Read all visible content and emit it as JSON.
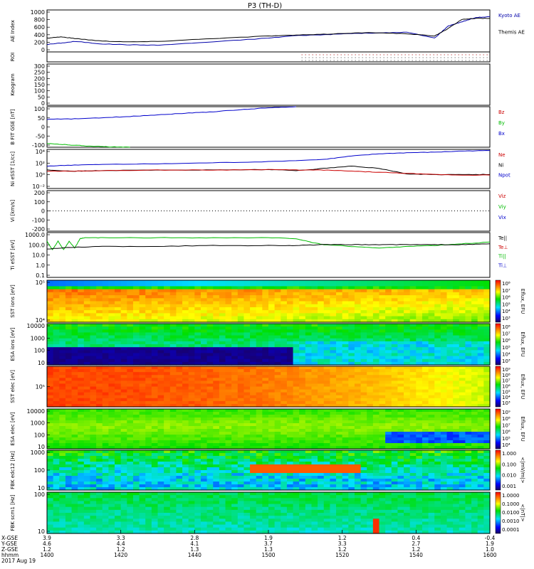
{
  "chart_data": {
    "type": "line",
    "title": "P3 (TH-D)",
    "date_label": "2017 Aug 19",
    "footer_rows": [
      {
        "label": "X-GSE",
        "values": [
          "3.9",
          "3.3",
          "2.8",
          "1.9",
          "1.2",
          "0.4",
          "-0.4"
        ]
      },
      {
        "label": "Y-GSE",
        "values": [
          "4.6",
          "4.4",
          "4.1",
          "3.7",
          "3.3",
          "2.7",
          "1.9"
        ]
      },
      {
        "label": "Z-GSE",
        "values": [
          "1.2",
          "1.2",
          "1.3",
          "1.3",
          "1.2",
          "1.2",
          "1.0"
        ]
      },
      {
        "label": "hhmm",
        "values": [
          "1400",
          "1420",
          "1440",
          "1500",
          "1520",
          "1540",
          "1600"
        ]
      }
    ],
    "panels": [
      {
        "ylabel": "AE Index",
        "ylim": [
          0,
          1000
        ],
        "ticks": [
          "1000",
          "800",
          "600",
          "400",
          "200",
          "0"
        ],
        "legend": [
          {
            "text": "Kyoto AE",
            "color": "#0000aa"
          },
          {
            "text": "Themis AE",
            "color": "#000000"
          }
        ],
        "series": [
          {
            "name": "Kyoto AE",
            "color": "#0000aa",
            "x": [
              0,
              5,
              10,
              20,
              30,
              40,
              60,
              80,
              90,
              100,
              110,
              120,
              130,
              140,
              145,
              150,
              155,
              160
            ],
            "y": [
              180,
              210,
              250,
              190,
              170,
              160,
              240,
              330,
              390,
              410,
              440,
              450,
              470,
              330,
              620,
              720,
              820,
              840
            ]
          },
          {
            "name": "Themis AE",
            "color": "#000000",
            "x": [
              0,
              5,
              10,
              20,
              30,
              40,
              60,
              80,
              90,
              100,
              110,
              120,
              130,
              140,
              145,
              150,
              155,
              160
            ],
            "y": [
              330,
              360,
              320,
              260,
              240,
              250,
              320,
              380,
              400,
              420,
              450,
              460,
              430,
              380,
              560,
              780,
              800,
              800
            ]
          }
        ]
      },
      {
        "ylabel": "ROI",
        "legend": []
      },
      {
        "ylabel": "Keogram",
        "ylim": [
          0,
          300
        ],
        "ticks": [
          "300",
          "250",
          "200",
          "150",
          "100",
          "50",
          "0"
        ],
        "legend": []
      },
      {
        "ylabel": "B FIT GSE [nT]",
        "ylim": [
          -100,
          100
        ],
        "ticks": [
          "100",
          "50",
          "0",
          "-50",
          "-100"
        ],
        "legend": [
          {
            "text": "Bz",
            "color": "#cc0000"
          },
          {
            "text": "By",
            "color": "#00bb00"
          },
          {
            "text": "Bx",
            "color": "#0000cc"
          }
        ],
        "series": [
          {
            "name": "Bx",
            "color": "#0000cc",
            "x": [
              0,
              10,
              20,
              30,
              40,
              50,
              60,
              70,
              80,
              90
            ],
            "y": [
              38,
              40,
              45,
              52,
              60,
              68,
              75,
              85,
              95,
              100
            ]
          },
          {
            "name": "By",
            "color": "#00bb00",
            "x": [
              0,
              5,
              10,
              15,
              20,
              25,
              30
            ],
            "y": [
              -82,
              -86,
              -90,
              -94,
              -97,
              -99,
              -100
            ]
          }
        ]
      },
      {
        "ylabel": "Ni eSST [1/cc]",
        "ylim": [
          -3,
          4
        ],
        "ticks": [
          "10⁴",
          "10²",
          "10⁰",
          "10⁻²"
        ],
        "legend": [
          {
            "text": "Ne",
            "color": "#cc0000"
          },
          {
            "text": "Ni",
            "color": "#000000"
          },
          {
            "text": "Npot",
            "color": "#0000cc"
          }
        ],
        "series": [
          {
            "name": "Npot",
            "color": "#0000cc",
            "x": [
              0,
              10,
              20,
              40,
              60,
              80,
              100,
              110,
              120,
              130,
              140,
              150,
              160
            ],
            "y": [
              1.0,
              1.2,
              1.3,
              1.4,
              1.6,
              1.8,
              2.2,
              2.8,
              3.2,
              3.4,
              3.5,
              3.7,
              3.8
            ]
          },
          {
            "name": "Ni",
            "color": "#000000",
            "x": [
              0,
              10,
              20,
              40,
              60,
              80,
              90,
              100,
              110,
              120,
              130,
              140,
              150,
              160
            ],
            "y": [
              0.3,
              0.1,
              0.2,
              0.3,
              0.3,
              0.4,
              0.2,
              0.6,
              1.0,
              0.6,
              -0.4,
              -0.5,
              -0.5,
              -0.5
            ]
          },
          {
            "name": "Ne",
            "color": "#cc0000",
            "x": [
              0,
              10,
              20,
              40,
              60,
              80,
              90,
              100,
              110,
              120,
              130,
              140,
              150,
              160
            ],
            "y": [
              0.1,
              0.1,
              0.2,
              0.3,
              0.3,
              0.4,
              0.3,
              0.3,
              0.1,
              -0.1,
              -0.3,
              -0.5,
              -0.6,
              -0.6
            ]
          }
        ]
      },
      {
        "ylabel": "Vi [km/s]",
        "ylim": [
          -200,
          200
        ],
        "ticks": [
          "200",
          "100",
          "0",
          "-100",
          "-200"
        ],
        "legend": [
          {
            "text": "Viz",
            "color": "#cc0000"
          },
          {
            "text": "Viy",
            "color": "#00bb00"
          },
          {
            "text": "Vix",
            "color": "#0000cc"
          }
        ]
      },
      {
        "ylabel": "Ti eSST [eV]",
        "ylim": [
          -1.2,
          4
        ],
        "ticks": [
          "1000.0",
          "100.0",
          "10.0",
          "1.0",
          "0.1"
        ],
        "legend": [
          {
            "text": "Te||",
            "color": "#000000"
          },
          {
            "text": "Te⊥",
            "color": "#cc0000"
          },
          {
            "text": "Ti||",
            "color": "#00bb00"
          },
          {
            "text": "Ti⊥",
            "color": "#0000cc"
          }
        ],
        "series": [
          {
            "name": "Ti||",
            "color": "#00bb00",
            "x": [
              0,
              2,
              4,
              6,
              8,
              10,
              12,
              14,
              20,
              40,
              60,
              80,
              90,
              95,
              100,
              110,
              120,
              130,
              140,
              150,
              160
            ],
            "y": [
              3.0,
              2.0,
              3.0,
              2.0,
              3.0,
              2.2,
              3.3,
              3.4,
              3.4,
              3.4,
              3.4,
              3.4,
              3.3,
              2.9,
              2.6,
              2.4,
              2.2,
              2.4,
              2.5,
              2.7,
              2.9
            ]
          },
          {
            "name": "Te||",
            "color": "#000000",
            "x": [
              0,
              10,
              20,
              40,
              60,
              80,
              90,
              100,
              110,
              120,
              130,
              140,
              150,
              160
            ],
            "y": [
              2.1,
              2.3,
              2.4,
              2.4,
              2.5,
              2.5,
              2.5,
              2.6,
              2.6,
              2.6,
              2.6,
              2.6,
              2.6,
              2.7
            ]
          }
        ]
      },
      {
        "ylabel": "SST ions [eV]",
        "ticks": [
          "10⁵",
          "10⁴"
        ],
        "cbar_label": "Eflux, EFU",
        "cbar_ticks": [
          "10⁸",
          "10⁷",
          "10⁶",
          "10⁵",
          "10⁴",
          "10³"
        ],
        "kind": "sst"
      },
      {
        "ylabel": "ESA ions [eV]",
        "ticks": [
          "10000",
          "1000",
          "100",
          "10"
        ],
        "cbar_label": "Eflux, EFU",
        "cbar_ticks": [
          "10⁸",
          "10⁷",
          "10⁶",
          "10⁵",
          "10⁴",
          "10³"
        ],
        "kind": "esa_i"
      },
      {
        "ylabel": "SST elec [eV]",
        "ticks": [
          "10⁵"
        ],
        "cbar_label": "Eflux, EFU",
        "cbar_ticks": [
          "10⁹",
          "10⁸",
          "10⁷",
          "10⁶",
          "10⁵",
          "10⁴",
          "10³"
        ],
        "kind": "sst_e"
      },
      {
        "ylabel": "ESA elec [eV]",
        "ticks": [
          "10000",
          "1000",
          "100",
          "10"
        ],
        "cbar_label": "Eflux, EFU",
        "cbar_ticks": [
          "10⁹",
          "10⁸",
          "10⁷",
          "10⁶",
          "10⁵",
          "10⁴"
        ],
        "kind": "esa_e"
      },
      {
        "ylabel": "FBK edc12 [Hz]",
        "ticks": [
          "1000",
          "100",
          "10"
        ],
        "cbar_label": "<|mV/m|>",
        "cbar_ticks": [
          "1.000",
          "0.100",
          "0.010",
          "0.001"
        ],
        "kind": "fbk_e"
      },
      {
        "ylabel": "FBK scm1 [Hz]",
        "ticks": [
          "100",
          "10"
        ],
        "cbar_label": "<|nT|>",
        "cbar_ticks": [
          "1.0000",
          "0.1000",
          "0.0100",
          "0.0010",
          "0.0001"
        ],
        "kind": "fbk_b"
      }
    ]
  }
}
